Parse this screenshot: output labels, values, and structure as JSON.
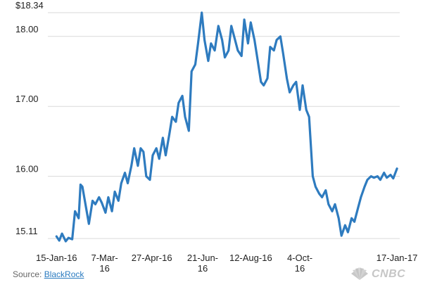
{
  "chart_data": {
    "type": "line",
    "title": "",
    "xlabel": "",
    "ylabel": "",
    "xlim": [
      "2016-01-11",
      "2017-01-20"
    ],
    "ylim": [
      15.0,
      18.34
    ],
    "yticks": [
      {
        "value": 18.34,
        "label": "$18.34"
      },
      {
        "value": 18.0,
        "label": "18.00"
      },
      {
        "value": 17.0,
        "label": "17.00"
      },
      {
        "value": 16.0,
        "label": "16.00"
      },
      {
        "value": 15.11,
        "label": "15.11"
      }
    ],
    "xticks": [
      {
        "date": "2016-01-15",
        "label": [
          "15-Jan-16"
        ]
      },
      {
        "date": "2016-03-07",
        "label": [
          "7-Mar-",
          "16"
        ]
      },
      {
        "date": "2016-04-27",
        "label": [
          "27-Apr-16"
        ]
      },
      {
        "date": "2016-06-21",
        "label": [
          "21-Jun-",
          "16"
        ]
      },
      {
        "date": "2016-08-12",
        "label": [
          "12-Aug-16"
        ]
      },
      {
        "date": "2016-10-04",
        "label": [
          "4-Oct-",
          "16"
        ]
      },
      {
        "date": "2017-01-17",
        "label": [
          "17-Jan-17"
        ]
      }
    ],
    "grid": true,
    "legend": "none",
    "color": "#2e7bbf",
    "series": [
      {
        "x": [
          "2016-01-15",
          "2016-01-18",
          "2016-01-21",
          "2016-01-25",
          "2016-01-28",
          "2016-02-01",
          "2016-02-04",
          "2016-02-08",
          "2016-02-10",
          "2016-02-12",
          "2016-02-16",
          "2016-02-19",
          "2016-02-23",
          "2016-02-26",
          "2016-03-01",
          "2016-03-04",
          "2016-03-08",
          "2016-03-11",
          "2016-03-15",
          "2016-03-18",
          "2016-03-22",
          "2016-03-25",
          "2016-03-29",
          "2016-04-01",
          "2016-04-05",
          "2016-04-08",
          "2016-04-12",
          "2016-04-15",
          "2016-04-18",
          "2016-04-21",
          "2016-04-25",
          "2016-04-28",
          "2016-05-02",
          "2016-05-05",
          "2016-05-09",
          "2016-05-12",
          "2016-05-16",
          "2016-05-19",
          "2016-05-23",
          "2016-05-26",
          "2016-05-30",
          "2016-06-02",
          "2016-06-06",
          "2016-06-09",
          "2016-06-13",
          "2016-06-16",
          "2016-06-20",
          "2016-06-23",
          "2016-06-27",
          "2016-06-30",
          "2016-07-04",
          "2016-07-08",
          "2016-07-12",
          "2016-07-15",
          "2016-07-19",
          "2016-07-22",
          "2016-07-26",
          "2016-07-29",
          "2016-08-02",
          "2016-08-05",
          "2016-08-09",
          "2016-08-12",
          "2016-08-16",
          "2016-08-19",
          "2016-08-23",
          "2016-08-26",
          "2016-08-30",
          "2016-09-02",
          "2016-09-06",
          "2016-09-09",
          "2016-09-13",
          "2016-09-16",
          "2016-09-20",
          "2016-09-23",
          "2016-09-27",
          "2016-09-30",
          "2016-10-04",
          "2016-10-07",
          "2016-10-11",
          "2016-10-14",
          "2016-10-18",
          "2016-10-21",
          "2016-10-25",
          "2016-10-28",
          "2016-11-01",
          "2016-11-04",
          "2016-11-08",
          "2016-11-11",
          "2016-11-15",
          "2016-11-18",
          "2016-11-22",
          "2016-11-25",
          "2016-11-29",
          "2016-12-02",
          "2016-12-06",
          "2016-12-09",
          "2016-12-13",
          "2016-12-16",
          "2016-12-20",
          "2016-12-23",
          "2016-12-27",
          "2016-12-30",
          "2017-01-03",
          "2017-01-06",
          "2017-01-10",
          "2017-01-13",
          "2017-01-17"
        ],
        "values": [
          15.14,
          15.08,
          15.18,
          15.07,
          15.12,
          15.1,
          15.5,
          15.4,
          15.88,
          15.85,
          15.55,
          15.32,
          15.65,
          15.6,
          15.7,
          15.62,
          15.48,
          15.7,
          15.5,
          15.78,
          15.65,
          15.9,
          16.05,
          15.9,
          16.15,
          16.4,
          16.15,
          16.4,
          16.35,
          16.0,
          15.95,
          16.3,
          16.4,
          16.25,
          16.55,
          16.3,
          16.6,
          16.85,
          16.78,
          17.05,
          17.15,
          16.85,
          16.65,
          17.5,
          17.6,
          17.9,
          18.34,
          17.95,
          17.65,
          17.9,
          17.8,
          18.15,
          17.95,
          17.7,
          17.8,
          18.15,
          17.95,
          17.8,
          17.72,
          18.24,
          17.9,
          18.2,
          17.95,
          17.7,
          17.35,
          17.3,
          17.4,
          17.85,
          17.8,
          17.95,
          18.0,
          17.75,
          17.4,
          17.2,
          17.3,
          17.35,
          16.95,
          17.3,
          16.95,
          16.85,
          16.0,
          15.85,
          15.75,
          15.7,
          15.8,
          15.6,
          15.5,
          15.6,
          15.4,
          15.15,
          15.3,
          15.2,
          15.4,
          15.35,
          15.55,
          15.7,
          15.85,
          15.95,
          16.0,
          15.98,
          16.0,
          15.95,
          16.05,
          15.98,
          16.02,
          15.97,
          16.11
        ]
      }
    ]
  },
  "footer": {
    "source_label": "Source: ",
    "source_link": "BlackRock",
    "logo_text": "CNBC"
  },
  "colors": {
    "line": "#2e7bbf",
    "grid": "#d9d9d9",
    "link": "#2a7bc0"
  },
  "icons": {
    "logo": "cnbc-peacock-icon"
  }
}
